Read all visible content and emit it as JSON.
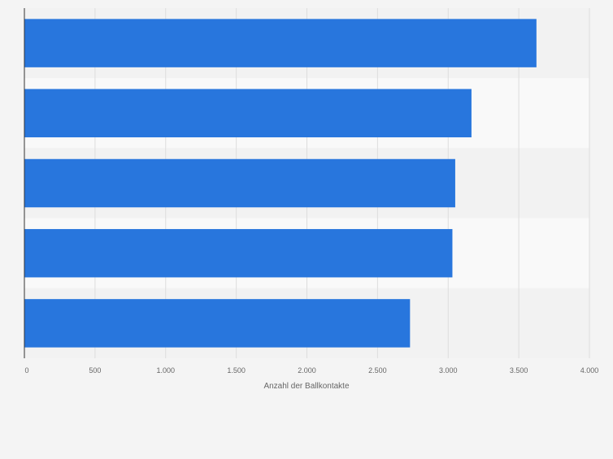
{
  "chart_data": {
    "type": "bar",
    "orientation": "horizontal",
    "categories": [
      "",
      "",
      "",
      "",
      ""
    ],
    "values": [
      3625,
      3165,
      3050,
      3030,
      2730
    ],
    "title": "",
    "xlabel": "Anzahl der Ballkontakte",
    "ylabel": "",
    "xlim": [
      0,
      4000
    ],
    "ticks": [
      0,
      500,
      1000,
      1500,
      2000,
      2500,
      3000,
      3500,
      4000
    ],
    "tick_labels": [
      "0",
      "500",
      "1.000",
      "1.500",
      "2.000",
      "2.500",
      "3.000",
      "3.500",
      "4.000"
    ],
    "grid": true,
    "bar_color": "#2876dd",
    "band_colors": [
      "#f2f2f2",
      "#f9f9f9"
    ]
  }
}
